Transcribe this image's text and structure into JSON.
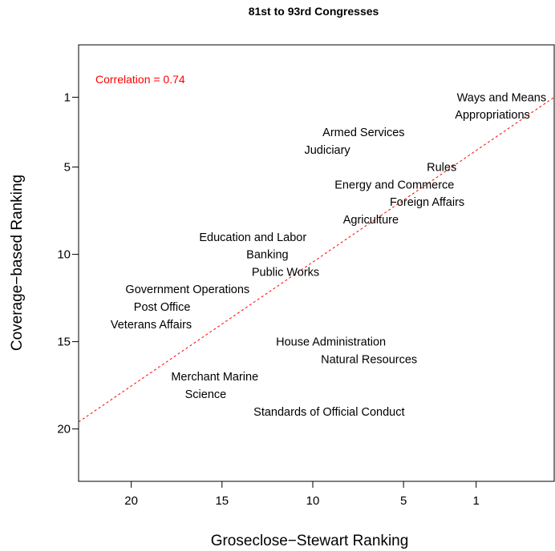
{
  "chart_data": {
    "type": "scatter",
    "title": "81st to 93rd Congresses",
    "xlabel": "Groseclose−Stewart Ranking",
    "ylabel": "Coverage−based Ranking",
    "xlim": [
      22.9,
      -3.3
    ],
    "ylim": [
      23.0,
      -2.0
    ],
    "x_reversed": true,
    "y_reversed": true,
    "x_ticks": [
      20,
      15,
      10,
      5,
      1
    ],
    "y_ticks": [
      1,
      5,
      10,
      15,
      20
    ],
    "grid": false,
    "annotation": {
      "text": "Correlation = 0.74",
      "color": "#ff0000"
    },
    "fit_line": {
      "color": "#ff0000",
      "style": "dashed",
      "x": [
        22.9,
        -3.3
      ],
      "y": [
        19.6,
        1.0
      ]
    },
    "points": [
      {
        "label": "Ways and Means",
        "x": -0.4,
        "y": 1
      },
      {
        "label": "Appropriations",
        "x": 0.1,
        "y": 2
      },
      {
        "label": "Armed Services",
        "x": 7.2,
        "y": 3
      },
      {
        "label": "Judiciary",
        "x": 9.2,
        "y": 4
      },
      {
        "label": "Rules",
        "x": 2.9,
        "y": 5
      },
      {
        "label": "Energy and Commerce",
        "x": 5.5,
        "y": 6
      },
      {
        "label": "Foreign Affairs",
        "x": 3.7,
        "y": 7
      },
      {
        "label": "Agriculture",
        "x": 6.8,
        "y": 8
      },
      {
        "label": "Education and Labor",
        "x": 13.3,
        "y": 9
      },
      {
        "label": "Banking",
        "x": 12.5,
        "y": 10
      },
      {
        "label": "Public Works",
        "x": 11.5,
        "y": 11
      },
      {
        "label": "Government Operations",
        "x": 16.9,
        "y": 12
      },
      {
        "label": "Post Office",
        "x": 18.3,
        "y": 13
      },
      {
        "label": "Veterans Affairs",
        "x": 18.9,
        "y": 14
      },
      {
        "label": "House Administration",
        "x": 9.0,
        "y": 15
      },
      {
        "label": "Natural Resources",
        "x": 6.9,
        "y": 16
      },
      {
        "label": "Merchant Marine",
        "x": 15.4,
        "y": 17
      },
      {
        "label": "Science",
        "x": 15.9,
        "y": 18
      },
      {
        "label": "Standards of Official Conduct",
        "x": 9.1,
        "y": 19
      }
    ]
  }
}
